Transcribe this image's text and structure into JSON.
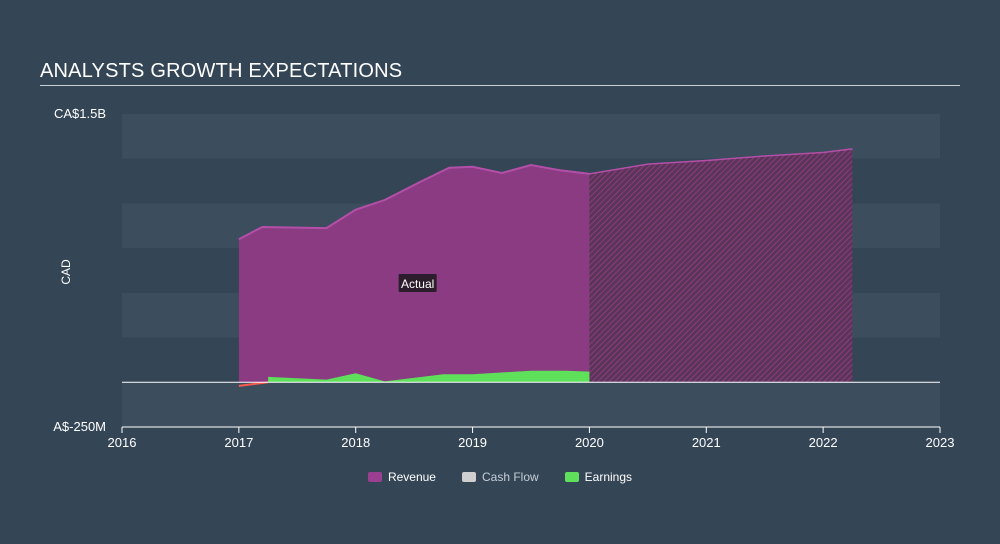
{
  "page": {
    "title": "ANALYSTS GROWTH EXPECTATIONS"
  },
  "chart_data": {
    "type": "area",
    "ylabel": "CAD",
    "y_tick_labels": [
      "CA$1.5B",
      "A$-250M"
    ],
    "ylim_millions": [
      -250,
      1500
    ],
    "x_ticks": [
      "2016",
      "2017",
      "2018",
      "2019",
      "2020",
      "2021",
      "2022",
      "2023"
    ],
    "xlim_years": [
      2016,
      2023
    ],
    "forecast_start": 2020.0,
    "annotation": "Actual",
    "grid": "horizontal bands",
    "legend_position": "bottom-center",
    "colors": {
      "background": "#344556",
      "band": "#3c4d5e",
      "revenue": "#8b3b82",
      "revenue_line": "#b44fa8",
      "earnings": "#5ee05a",
      "cash_flow": "#cfcfcf",
      "negative": "#ff5a4f"
    },
    "series": [
      {
        "name": "Revenue",
        "unit": "CAD millions",
        "actual": {
          "x": [
            2017.0,
            2017.2,
            2017.5,
            2017.75,
            2018.0,
            2018.25,
            2018.55,
            2018.8,
            2019.0,
            2019.25,
            2019.5,
            2019.75,
            2020.0
          ],
          "y": [
            800,
            868,
            865,
            862,
            965,
            1020,
            1120,
            1200,
            1205,
            1170,
            1215,
            1185,
            1165
          ]
        },
        "forecast": {
          "x": [
            2020.0,
            2020.5,
            2021.0,
            2021.5,
            2022.0,
            2022.25
          ],
          "y": [
            1165,
            1220,
            1240,
            1265,
            1285,
            1305
          ]
        }
      },
      {
        "name": "Cash Flow",
        "x": [],
        "y": []
      },
      {
        "name": "Earnings",
        "unit": "CAD millions",
        "actual": {
          "x": [
            2017.0,
            2017.25,
            2017.75,
            2018.0,
            2018.25,
            2018.75,
            2019.0,
            2019.5,
            2019.8,
            2020.0
          ],
          "y": [
            -20,
            30,
            15,
            50,
            5,
            45,
            45,
            65,
            65,
            60
          ]
        }
      }
    ],
    "legend": [
      {
        "label": "Revenue",
        "color": "#9b3f92"
      },
      {
        "label": "Cash Flow",
        "color": "#cfcfcf"
      },
      {
        "label": "Earnings",
        "color": "#5ee05a"
      }
    ]
  }
}
